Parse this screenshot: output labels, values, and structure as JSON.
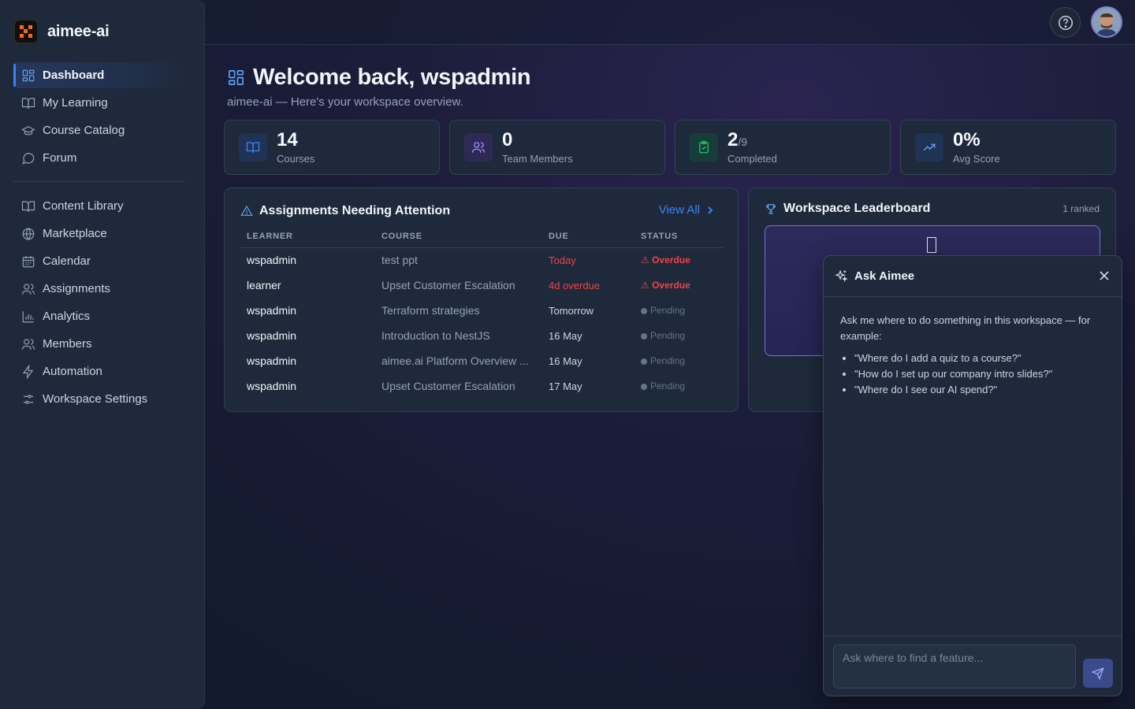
{
  "brand": {
    "name": "aimee-ai",
    "accent": "#f26a1b"
  },
  "sidebar": {
    "primary": [
      {
        "label": "Dashboard",
        "icon": "dashboard-icon",
        "active": true
      },
      {
        "label": "My Learning",
        "icon": "book-open-icon"
      },
      {
        "label": "Course Catalog",
        "icon": "graduation-cap-icon"
      },
      {
        "label": "Forum",
        "icon": "chat-bubble-icon"
      }
    ],
    "secondary": [
      {
        "label": "Content Library",
        "icon": "book-open-icon"
      },
      {
        "label": "Marketplace",
        "icon": "globe-icon"
      },
      {
        "label": "Calendar",
        "icon": "calendar-icon"
      },
      {
        "label": "Assignments",
        "icon": "users-icon"
      },
      {
        "label": "Analytics",
        "icon": "bar-chart-icon"
      },
      {
        "label": "Members",
        "icon": "users-icon"
      },
      {
        "label": "Automation",
        "icon": "lightning-icon"
      },
      {
        "label": "Workspace Settings",
        "icon": "sliders-icon"
      }
    ]
  },
  "topbar": {
    "help_icon": "help-circle-icon",
    "avatar_icon": "user-avatar"
  },
  "header": {
    "title": "Welcome back, wspadmin",
    "subtitle": "aimee-ai — Here's your workspace overview."
  },
  "stats": [
    {
      "value": "14",
      "suffix": "",
      "label": "Courses",
      "color": "#3b82f6",
      "bg": "#1f3355",
      "icon": "book-open-icon"
    },
    {
      "value": "0",
      "suffix": "",
      "label": "Team Members",
      "color": "#a78bfa",
      "bg": "#2e2a55",
      "icon": "users-icon"
    },
    {
      "value": "2",
      "suffix": "/9",
      "label": "Completed",
      "color": "#22c55e",
      "bg": "#163d3a",
      "icon": "clipboard-check-icon"
    },
    {
      "value": "0%",
      "suffix": "",
      "label": "Avg Score",
      "color": "#60a5fa",
      "bg": "#1f3355",
      "icon": "trending-up-icon"
    }
  ],
  "assignments": {
    "title": "Assignments Needing Attention",
    "view_all": "View All",
    "columns": [
      "LEARNER",
      "COURSE",
      "DUE",
      "STATUS"
    ],
    "rows": [
      {
        "learner": "wspadmin",
        "course": "test ppt",
        "due": "Today",
        "due_red": true,
        "status": "Overdue",
        "status_type": "overdue"
      },
      {
        "learner": "learner",
        "course": "Upset Customer Escalation",
        "due": "4d overdue",
        "due_red": true,
        "status": "Overdue",
        "status_type": "overdue"
      },
      {
        "learner": "wspadmin",
        "course": "Terraform strategies",
        "due": "Tomorrow",
        "due_red": false,
        "status": "Pending",
        "status_type": "pending"
      },
      {
        "learner": "wspadmin",
        "course": "Introduction to NestJS",
        "due": "16 May",
        "due_red": false,
        "status": "Pending",
        "status_type": "pending"
      },
      {
        "learner": "wspadmin",
        "course": "aimee.ai Platform Overview ...",
        "due": "16 May",
        "due_red": false,
        "status": "Pending",
        "status_type": "pending"
      },
      {
        "learner": "wspadmin",
        "course": "Upset Customer Escalation",
        "due": "17 May",
        "due_red": false,
        "status": "Pending",
        "status_type": "pending"
      }
    ]
  },
  "leaderboard": {
    "title": "Workspace Leaderboard",
    "ranked": "1 ranked"
  },
  "ask": {
    "title": "Ask Aimee",
    "intro": "Ask me where to do something in this workspace — for example:",
    "examples": [
      "\"Where do I add a quiz to a course?\"",
      "\"How do I set up our company intro slides?\"",
      "\"Where do I see our AI spend?\""
    ],
    "placeholder": "Ask where to find a feature..."
  }
}
